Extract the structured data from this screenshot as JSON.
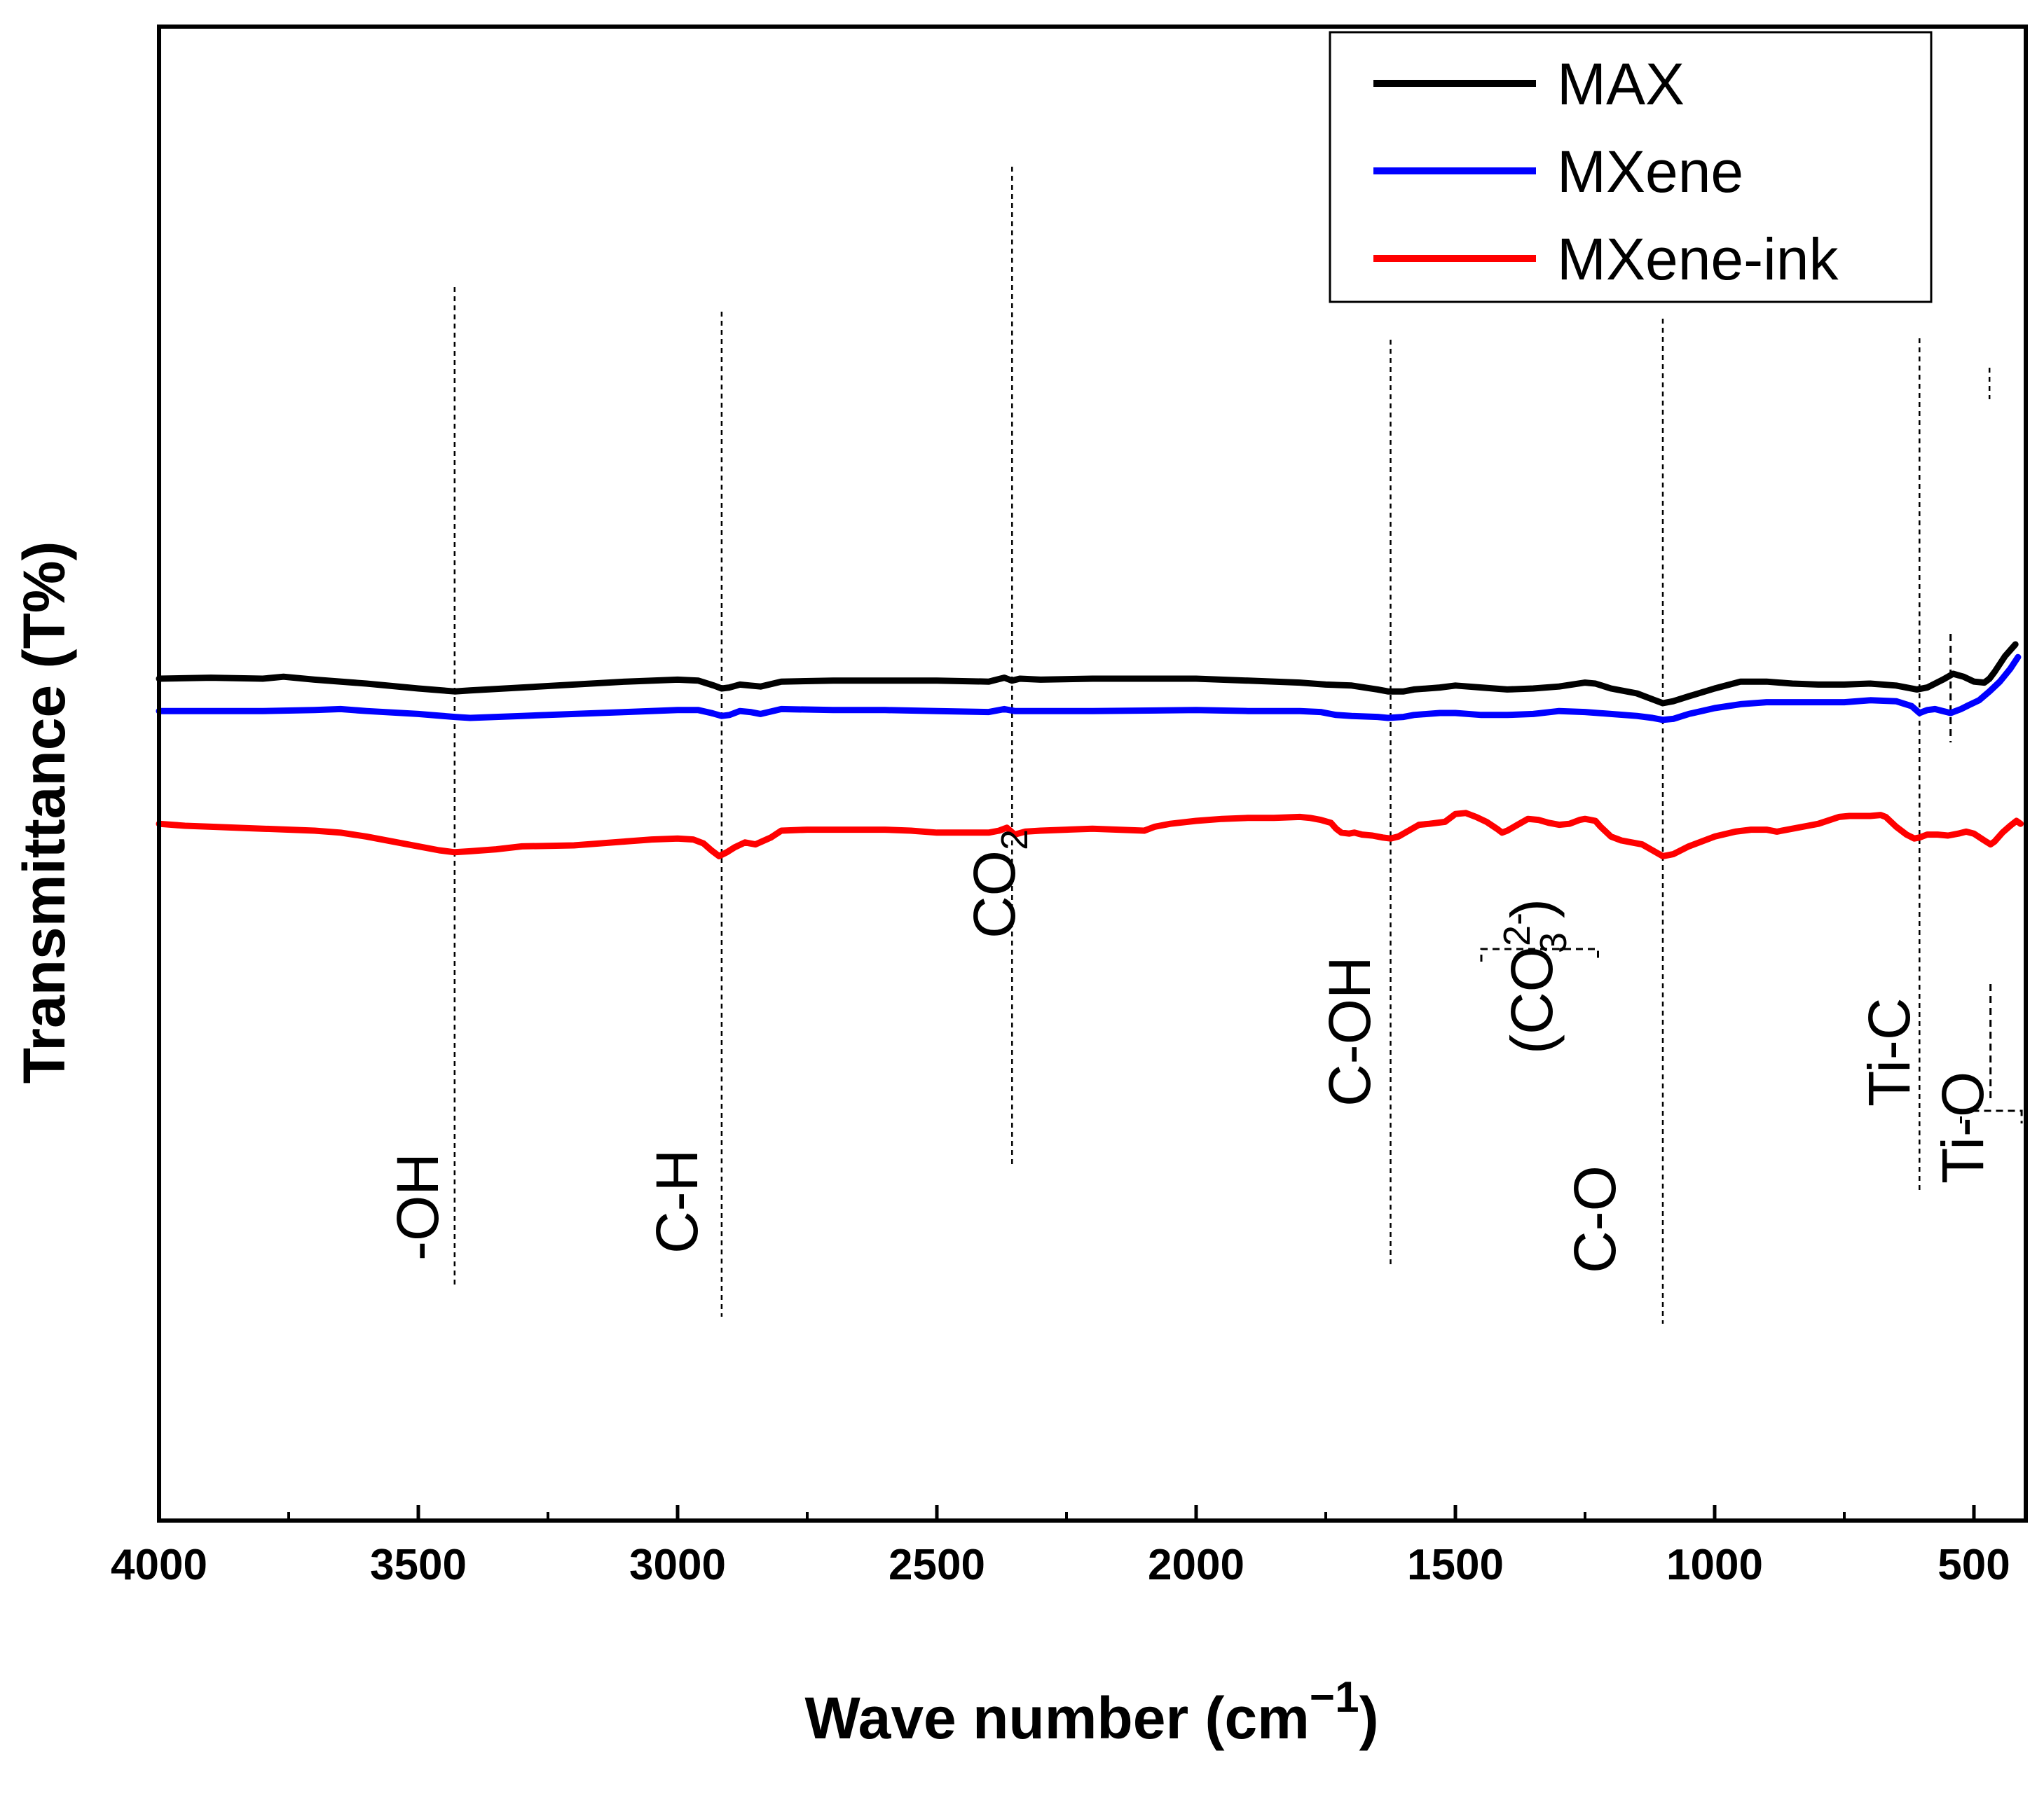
{
  "chart_data": {
    "type": "line",
    "title": "",
    "xlabel": "Wave number (cm",
    "xlabel_sup": "−1",
    "xlabel_close": ")",
    "ylabel": "Transmittance (T%)",
    "xlim": [
      4000,
      400
    ],
    "x_ticks": [
      4000,
      3500,
      3000,
      2500,
      2000,
      1500,
      1000,
      500
    ],
    "yticks": "none",
    "legend": "top-right",
    "series": [
      {
        "name": "MAX",
        "color": "#000000",
        "points": [
          [
            4000,
            65
          ],
          [
            3900,
            66
          ],
          [
            3800,
            65
          ],
          [
            3760,
            67
          ],
          [
            3700,
            64
          ],
          [
            3600,
            60
          ],
          [
            3500,
            55
          ],
          [
            3430,
            52
          ],
          [
            3400,
            53
          ],
          [
            3300,
            56
          ],
          [
            3200,
            59
          ],
          [
            3100,
            62
          ],
          [
            3000,
            64
          ],
          [
            2960,
            63
          ],
          [
            2930,
            58
          ],
          [
            2915,
            55
          ],
          [
            2900,
            56
          ],
          [
            2880,
            59
          ],
          [
            2860,
            58
          ],
          [
            2840,
            57
          ],
          [
            2800,
            62
          ],
          [
            2700,
            63
          ],
          [
            2600,
            63
          ],
          [
            2500,
            63
          ],
          [
            2400,
            62
          ],
          [
            2370,
            66
          ],
          [
            2355,
            63
          ],
          [
            2340,
            65
          ],
          [
            2300,
            64
          ],
          [
            2200,
            65
          ],
          [
            2000,
            65
          ],
          [
            1900,
            63
          ],
          [
            1800,
            61
          ],
          [
            1750,
            59
          ],
          [
            1700,
            58
          ],
          [
            1650,
            54
          ],
          [
            1630,
            52
          ],
          [
            1600,
            52
          ],
          [
            1580,
            54
          ],
          [
            1530,
            56
          ],
          [
            1500,
            58
          ],
          [
            1450,
            56
          ],
          [
            1400,
            54
          ],
          [
            1350,
            55
          ],
          [
            1300,
            57
          ],
          [
            1250,
            61
          ],
          [
            1230,
            60
          ],
          [
            1200,
            55
          ],
          [
            1150,
            50
          ],
          [
            1120,
            44
          ],
          [
            1100,
            40
          ],
          [
            1080,
            42
          ],
          [
            1050,
            47
          ],
          [
            1000,
            55
          ],
          [
            950,
            62
          ],
          [
            900,
            62
          ],
          [
            850,
            60
          ],
          [
            800,
            59
          ],
          [
            750,
            59
          ],
          [
            700,
            60
          ],
          [
            650,
            58
          ],
          [
            610,
            54
          ],
          [
            590,
            56
          ],
          [
            560,
            64
          ],
          [
            540,
            70
          ],
          [
            520,
            67
          ],
          [
            500,
            62
          ],
          [
            480,
            61
          ],
          [
            470,
            65
          ],
          [
            460,
            72
          ],
          [
            440,
            88
          ],
          [
            420,
            100
          ]
        ]
      },
      {
        "name": "MXene",
        "color": "#0000ff",
        "points": [
          [
            4000,
            42
          ],
          [
            3900,
            42
          ],
          [
            3800,
            42
          ],
          [
            3700,
            43
          ],
          [
            3650,
            44
          ],
          [
            3600,
            42
          ],
          [
            3500,
            39
          ],
          [
            3430,
            36
          ],
          [
            3400,
            35
          ],
          [
            3300,
            37
          ],
          [
            3200,
            39
          ],
          [
            3100,
            41
          ],
          [
            3000,
            43
          ],
          [
            2960,
            43
          ],
          [
            2935,
            40
          ],
          [
            2915,
            37
          ],
          [
            2900,
            38
          ],
          [
            2880,
            42
          ],
          [
            2860,
            41
          ],
          [
            2840,
            39
          ],
          [
            2800,
            44
          ],
          [
            2700,
            43
          ],
          [
            2600,
            43
          ],
          [
            2500,
            42
          ],
          [
            2400,
            41
          ],
          [
            2370,
            44
          ],
          [
            2350,
            42
          ],
          [
            2300,
            42
          ],
          [
            2200,
            42
          ],
          [
            2000,
            43
          ],
          [
            1900,
            42
          ],
          [
            1800,
            42
          ],
          [
            1760,
            41
          ],
          [
            1730,
            38
          ],
          [
            1700,
            37
          ],
          [
            1650,
            36
          ],
          [
            1630,
            35
          ],
          [
            1600,
            36
          ],
          [
            1580,
            38
          ],
          [
            1530,
            40
          ],
          [
            1500,
            40
          ],
          [
            1450,
            38
          ],
          [
            1400,
            38
          ],
          [
            1350,
            39
          ],
          [
            1300,
            42
          ],
          [
            1250,
            41
          ],
          [
            1200,
            39
          ],
          [
            1150,
            37
          ],
          [
            1120,
            35
          ],
          [
            1100,
            33
          ],
          [
            1080,
            34
          ],
          [
            1050,
            39
          ],
          [
            1000,
            45
          ],
          [
            950,
            49
          ],
          [
            900,
            51
          ],
          [
            850,
            51
          ],
          [
            800,
            51
          ],
          [
            750,
            51
          ],
          [
            700,
            53
          ],
          [
            650,
            52
          ],
          [
            620,
            47
          ],
          [
            605,
            40
          ],
          [
            590,
            43
          ],
          [
            575,
            44
          ],
          [
            560,
            42
          ],
          [
            545,
            40
          ],
          [
            525,
            44
          ],
          [
            510,
            48
          ],
          [
            490,
            53
          ],
          [
            470,
            62
          ],
          [
            450,
            72
          ],
          [
            430,
            85
          ],
          [
            415,
            97
          ]
        ]
      },
      {
        "name": "MXene-ink",
        "color": "#ff0000",
        "points": [
          [
            4000,
            27
          ],
          [
            3950,
            25
          ],
          [
            3900,
            24
          ],
          [
            3800,
            22
          ],
          [
            3700,
            20
          ],
          [
            3650,
            18
          ],
          [
            3600,
            14
          ],
          [
            3550,
            9
          ],
          [
            3500,
            4
          ],
          [
            3460,
            0
          ],
          [
            3430,
            -2
          ],
          [
            3400,
            -1
          ],
          [
            3350,
            1
          ],
          [
            3300,
            4
          ],
          [
            3200,
            5
          ],
          [
            3100,
            9
          ],
          [
            3050,
            11
          ],
          [
            3000,
            12
          ],
          [
            2970,
            11
          ],
          [
            2950,
            7
          ],
          [
            2935,
            0
          ],
          [
            2920,
            -6
          ],
          [
            2905,
            -2
          ],
          [
            2890,
            3
          ],
          [
            2870,
            8
          ],
          [
            2850,
            6
          ],
          [
            2820,
            13
          ],
          [
            2800,
            20
          ],
          [
            2750,
            21
          ],
          [
            2700,
            21
          ],
          [
            2650,
            21
          ],
          [
            2600,
            21
          ],
          [
            2550,
            20
          ],
          [
            2500,
            18
          ],
          [
            2400,
            18
          ],
          [
            2380,
            20
          ],
          [
            2365,
            23
          ],
          [
            2350,
            16
          ],
          [
            2330,
            19
          ],
          [
            2300,
            20
          ],
          [
            2250,
            21
          ],
          [
            2200,
            22
          ],
          [
            2150,
            21
          ],
          [
            2100,
            20
          ],
          [
            2080,
            24
          ],
          [
            2050,
            27
          ],
          [
            2000,
            30
          ],
          [
            1950,
            32
          ],
          [
            1900,
            33
          ],
          [
            1850,
            33
          ],
          [
            1800,
            34
          ],
          [
            1780,
            33
          ],
          [
            1760,
            31
          ],
          [
            1740,
            28
          ],
          [
            1730,
            22
          ],
          [
            1720,
            18
          ],
          [
            1705,
            17
          ],
          [
            1695,
            18
          ],
          [
            1680,
            16
          ],
          [
            1660,
            15
          ],
          [
            1640,
            13
          ],
          [
            1625,
            12
          ],
          [
            1610,
            14
          ],
          [
            1590,
            20
          ],
          [
            1570,
            26
          ],
          [
            1550,
            27
          ],
          [
            1520,
            29
          ],
          [
            1500,
            37
          ],
          [
            1480,
            38
          ],
          [
            1460,
            34
          ],
          [
            1440,
            29
          ],
          [
            1420,
            22
          ],
          [
            1410,
            18
          ],
          [
            1400,
            20
          ],
          [
            1380,
            26
          ],
          [
            1360,
            32
          ],
          [
            1340,
            31
          ],
          [
            1320,
            28
          ],
          [
            1300,
            26
          ],
          [
            1280,
            27
          ],
          [
            1260,
            31
          ],
          [
            1250,
            32
          ],
          [
            1230,
            30
          ],
          [
            1220,
            24
          ],
          [
            1200,
            14
          ],
          [
            1180,
            10
          ],
          [
            1160,
            8
          ],
          [
            1140,
            6
          ],
          [
            1120,
            0
          ],
          [
            1100,
            -6
          ],
          [
            1080,
            -4
          ],
          [
            1050,
            4
          ],
          [
            1000,
            14
          ],
          [
            960,
            19
          ],
          [
            930,
            21
          ],
          [
            900,
            21
          ],
          [
            880,
            19
          ],
          [
            850,
            22
          ],
          [
            820,
            25
          ],
          [
            800,
            27
          ],
          [
            760,
            34
          ],
          [
            740,
            35
          ],
          [
            720,
            35
          ],
          [
            700,
            35
          ],
          [
            680,
            36
          ],
          [
            670,
            34
          ],
          [
            650,
            24
          ],
          [
            630,
            16
          ],
          [
            615,
            12
          ],
          [
            605,
            13
          ],
          [
            590,
            16
          ],
          [
            570,
            16
          ],
          [
            550,
            15
          ],
          [
            530,
            17
          ],
          [
            515,
            19
          ],
          [
            500,
            17
          ],
          [
            480,
            10
          ],
          [
            468,
            6
          ],
          [
            460,
            9
          ],
          [
            445,
            18
          ],
          [
            430,
            25
          ],
          [
            418,
            30
          ],
          [
            410,
            27
          ]
        ]
      }
    ],
    "annotations": [
      {
        "text": "-OH",
        "x": 3430
      },
      {
        "text": "C-H",
        "x": 2915
      },
      {
        "text": "CO",
        "sub": "2",
        "x": 2355
      },
      {
        "text": "C-OH",
        "x": 1625
      },
      {
        "pre": "(CO",
        "sub": "3",
        "sup": "2-",
        "post": ")",
        "x": 1330
      },
      {
        "text": "C-O",
        "x": 1100
      },
      {
        "text": "Ti-C",
        "x": 605
      },
      {
        "text": "Ti-O",
        "x": 470
      }
    ]
  }
}
